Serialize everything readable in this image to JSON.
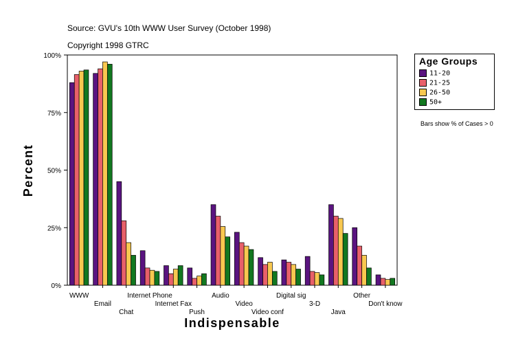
{
  "header": {
    "source": "Source: GVU's 10th WWW User Survey (October 1998)",
    "copyright": "Copyright 1998 GTRC"
  },
  "legend": {
    "title": "Age Groups",
    "items": [
      {
        "label": "11-20",
        "color": "#5a1480"
      },
      {
        "label": "21-25",
        "color": "#e8606a"
      },
      {
        "label": "26-50",
        "color": "#f8c850"
      },
      {
        "label": "50+",
        "color": "#127820"
      }
    ]
  },
  "note": "Bars show % of Cases > 0",
  "chart_data": {
    "type": "bar",
    "title": "Source: GVU's 10th WWW User Survey (October 1998)",
    "xlabel": "Indispensable",
    "ylabel": "Percent",
    "ylim": [
      0,
      100
    ],
    "yticks": [
      "0%",
      "25%",
      "50%",
      "75%",
      "100%"
    ],
    "ytick_values": [
      0,
      25,
      50,
      75,
      100
    ],
    "categories": [
      "WWW",
      "Email",
      "Chat",
      "Internet Phone",
      "Internet Fax",
      "Push",
      "Audio",
      "Video",
      "Video conf",
      "Digital sig",
      "3-D",
      "Java",
      "Other",
      "Don't know"
    ],
    "series": [
      {
        "name": "11-20",
        "color": "#5a1480",
        "values": [
          88,
          92,
          45,
          15,
          8.5,
          7.5,
          35,
          23,
          12,
          11,
          12.5,
          35,
          25,
          4.5
        ]
      },
      {
        "name": "21-25",
        "color": "#e8606a",
        "values": [
          91.5,
          94,
          28,
          7.5,
          5,
          3,
          30,
          18.5,
          9,
          10,
          6,
          30,
          17,
          3
        ]
      },
      {
        "name": "26-50",
        "color": "#f8c850",
        "values": [
          93,
          97,
          18.5,
          6.5,
          7,
          4,
          25.5,
          17,
          10,
          9,
          5.5,
          29,
          13,
          2.5
        ]
      },
      {
        "name": "50+",
        "color": "#127820",
        "values": [
          93.5,
          96,
          13,
          6,
          8.5,
          5,
          21,
          15.5,
          6,
          7,
          4.5,
          22.5,
          7.5,
          3
        ]
      }
    ]
  }
}
